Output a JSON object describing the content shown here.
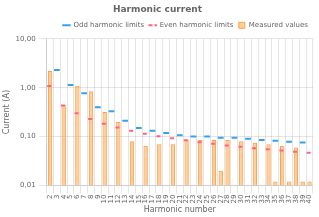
{
  "chart_data": {
    "type": "bar",
    "title": "Harmonic current",
    "x_label": "Harmonic number",
    "y_label": "Current (A)",
    "log": "y",
    "grid": true,
    "legend": "upper right",
    "categories": [
      2,
      3,
      4,
      5,
      6,
      7,
      8,
      9,
      10,
      11,
      12,
      13,
      14,
      15,
      16,
      17,
      18,
      19,
      20,
      21,
      22,
      23,
      24,
      25,
      26,
      27,
      28,
      29,
      30,
      31,
      32,
      33,
      34,
      35,
      36,
      37,
      38,
      39,
      40
    ],
    "ylim": [
      0.01,
      10.0
    ],
    "yticks": [
      {
        "value": 0.01,
        "label": "0,01"
      },
      {
        "value": 0.1,
        "label": "0,10"
      },
      {
        "value": 1.0,
        "label": "1,00"
      },
      {
        "value": 10.0,
        "label": "10,00"
      }
    ],
    "series": [
      {
        "name": "Odd harmonic limits",
        "type": "line",
        "line_style": "solid",
        "values": [
          null,
          2.3,
          null,
          1.14,
          null,
          0.77,
          null,
          0.4,
          null,
          0.33,
          null,
          0.21,
          null,
          0.15,
          null,
          0.132,
          null,
          0.118,
          null,
          0.107,
          null,
          0.1,
          null,
          0.1,
          null,
          0.095,
          null,
          0.095,
          null,
          0.09,
          null,
          0.085,
          null,
          0.082,
          null,
          0.078,
          null,
          0.076,
          null
        ]
      },
      {
        "name": "Even harmonic limits",
        "type": "line",
        "line_style": "dashed",
        "values": [
          1.08,
          null,
          0.43,
          null,
          0.3,
          null,
          0.23,
          null,
          0.184,
          null,
          0.153,
          null,
          0.131,
          null,
          0.115,
          null,
          0.102,
          null,
          0.092,
          null,
          0.084,
          null,
          0.077,
          null,
          0.071,
          null,
          0.066,
          null,
          0.062,
          null,
          0.058,
          null,
          0.055,
          null,
          0.052,
          null,
          0.049,
          null,
          0.047
        ]
      },
      {
        "name": "Measured values",
        "type": "bar",
        "values": [
          2.2,
          null,
          0.45,
          null,
          1.1,
          null,
          0.85,
          null,
          0.32,
          null,
          0.2,
          null,
          0.08,
          null,
          0.065,
          null,
          0.07,
          null,
          0.07,
          null,
          0.085,
          null,
          0.085,
          null,
          0.085,
          0.02,
          0.085,
          null,
          0.08,
          null,
          0.075,
          null,
          0.07,
          0.012,
          0.065,
          0.012,
          0.06,
          0.012,
          0.012
        ]
      }
    ]
  }
}
